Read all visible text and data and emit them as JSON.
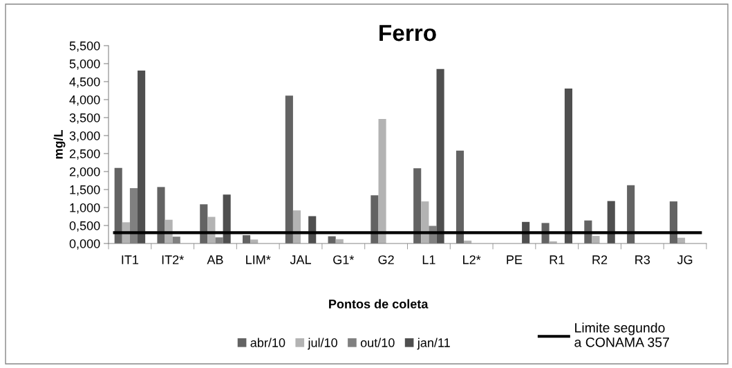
{
  "chart_data": {
    "type": "bar",
    "title": "Ferro",
    "xlabel": "Pontos de coleta",
    "ylabel": "mg/L",
    "categories": [
      "IT1",
      "IT2*",
      "AB",
      "LIM*",
      "JAL",
      "G1*",
      "G2",
      "L1",
      "L2*",
      "PE",
      "R1",
      "R2",
      "R3",
      "JG"
    ],
    "series": [
      {
        "name": "abr/10",
        "color": "#636363",
        "values": [
          2.1,
          1.57,
          1.09,
          0.23,
          4.11,
          0.2,
          1.34,
          2.09,
          2.58,
          null,
          0.57,
          0.64,
          1.62,
          1.17
        ]
      },
      {
        "name": "jul/10",
        "color": "#b3b3b3",
        "values": [
          0.59,
          0.66,
          0.74,
          0.11,
          0.92,
          0.12,
          3.46,
          1.17,
          0.08,
          null,
          0.06,
          0.21,
          null,
          0.16
        ]
      },
      {
        "name": "out/10",
        "color": "#808080",
        "values": [
          1.54,
          0.19,
          0.17,
          null,
          null,
          null,
          null,
          0.49,
          null,
          null,
          null,
          null,
          null,
          null
        ]
      },
      {
        "name": "jan/11",
        "color": "#4f4f4f",
        "values": [
          4.81,
          null,
          1.36,
          null,
          0.76,
          null,
          null,
          4.85,
          null,
          0.6,
          4.31,
          1.18,
          null,
          null
        ]
      }
    ],
    "ylim": [
      0,
      5.5
    ],
    "yticks": [
      {
        "value": 0,
        "label": "0,000"
      },
      {
        "value": 0.5,
        "label": "0,500"
      },
      {
        "value": 1,
        "label": "1,000"
      },
      {
        "value": 1.5,
        "label": "1,500"
      },
      {
        "value": 2,
        "label": "2,000"
      },
      {
        "value": 2.5,
        "label": "2,500"
      },
      {
        "value": 3,
        "label": "3,000"
      },
      {
        "value": 3.5,
        "label": "3,500"
      },
      {
        "value": 4,
        "label": "4,000"
      },
      {
        "value": 4.5,
        "label": "4,500"
      },
      {
        "value": 5,
        "label": "5,000"
      },
      {
        "value": 5.5,
        "label": "5,500"
      }
    ],
    "ref_lines": [
      {
        "axis": "y",
        "value": 0.3,
        "label": "Limite segundo\na CONAMA 357",
        "color": "#000000",
        "line_style": "solid"
      }
    ],
    "grid": false,
    "legend": "bottom"
  }
}
